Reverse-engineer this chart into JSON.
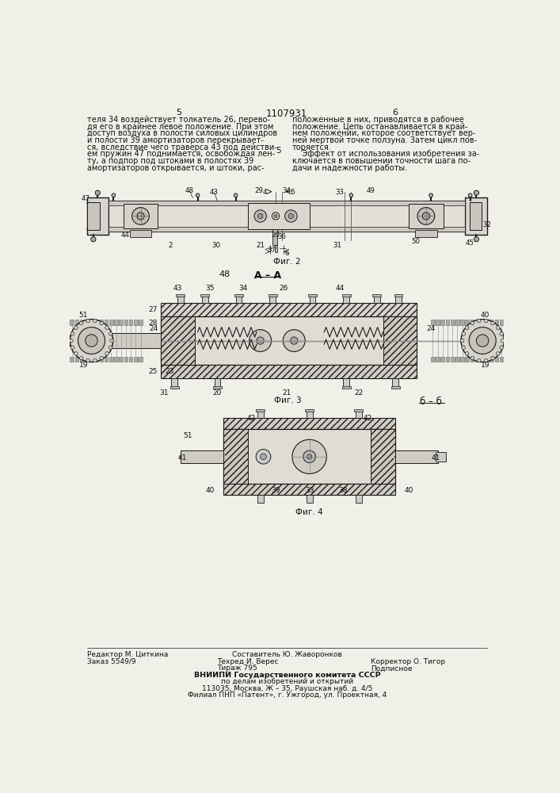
{
  "page_width": 7.07,
  "page_height": 10.0,
  "bg_color": "#f0efe8",
  "patent_number": "1107931",
  "page_num_left": "5",
  "page_num_right": "6",
  "left_text": [
    "теля 34 воздействует толкатель 26, перево-",
    "дя его в крайнее левое положение. При этом",
    "доступ воздуха в полости силовых цилиндров",
    "и полости 39 амортизаторов перекрывает-",
    "ся, вследствие чего траверса 43 под действи-",
    "ем пружин 47 поднимается, освобождая лен-",
    "ту, а подпор под штоками в полостях 39",
    "амортизаторов открывается, и штоки, рас-"
  ],
  "right_text": [
    "положенные в них, приводятся в рабочее",
    "положение. Цепь останавливается в край-",
    "нем положении, которое соответствует вер-",
    "ней мертвой точке ползуна. Затем цикл пов-",
    "торяется.",
    "    Эффект от использования изобретения за-",
    "ключается в повышении точности шага по-",
    "дачи и надежности работы."
  ],
  "fig2_label": "Фиг. 2",
  "fig3_label": "Фиг. 3",
  "fig4_label": "Фиг. 4",
  "header_48_AA": "48  А – А",
  "bottom_left": [
    "Редактор М. Циткина",
    "Заказ 5549/9"
  ],
  "bottom_center": [
    "Составитель Ю. Жаворонков",
    "Техред И. Верес",
    "Корректор О. Тигор",
    "Тираж 795",
    "Подписное",
    "ВНИИПИ Государственного комитета СССР",
    "по делам изобретений и открытий",
    "113035, Москва, Ж – 35, Раушская наб. д. 4/5",
    "Филиал ПНП «Патент», г. Ужгород, ул. Проектная, 4"
  ],
  "lc": "#1a1a1a",
  "hc": "#888888"
}
